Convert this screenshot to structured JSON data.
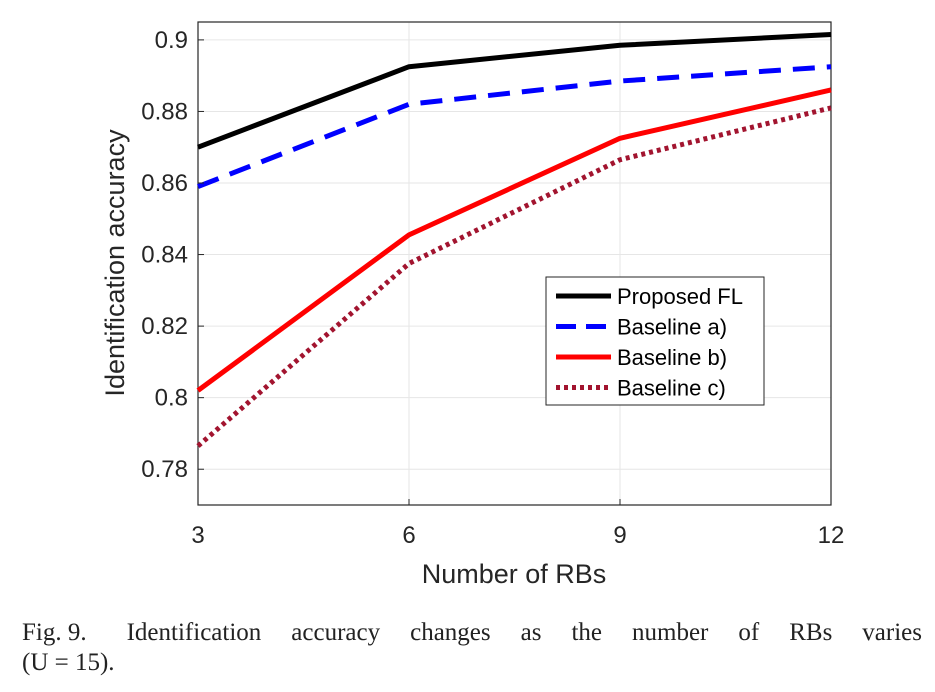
{
  "chart_data": {
    "type": "line",
    "xlabel": "Number of RBs",
    "ylabel": "Identification accuracy",
    "x": [
      3,
      6,
      9,
      12
    ],
    "xlim": [
      3,
      12
    ],
    "ylim": [
      0.77,
      0.905
    ],
    "xticks": [
      3,
      6,
      9,
      12
    ],
    "yticks": [
      0.78,
      0.8,
      0.82,
      0.84,
      0.86,
      0.88,
      0.9
    ],
    "ytick_labels": [
      "0.78",
      "0.8",
      "0.82",
      "0.84",
      "0.86",
      "0.88",
      "0.9"
    ],
    "grid": true,
    "legend_position": "center-right",
    "series": [
      {
        "name": "Proposed FL",
        "values": [
          0.87,
          0.8925,
          0.8985,
          0.9015
        ],
        "color": "#000000",
        "style": "solid"
      },
      {
        "name": "Baseline a)",
        "values": [
          0.859,
          0.882,
          0.8885,
          0.8925
        ],
        "color": "#0000ff",
        "style": "dashed"
      },
      {
        "name": "Baseline b)",
        "values": [
          0.802,
          0.8455,
          0.8725,
          0.886
        ],
        "color": "#ff0000",
        "style": "solid"
      },
      {
        "name": "Baseline c)",
        "values": [
          0.7865,
          0.8375,
          0.8665,
          0.881
        ],
        "color": "#a2142f",
        "style": "dotted"
      }
    ]
  },
  "caption": {
    "label": "Fig. 9.",
    "text_line1": "Identification accuracy changes as the number of RBs varies",
    "text_line2": "(U = 15)."
  }
}
